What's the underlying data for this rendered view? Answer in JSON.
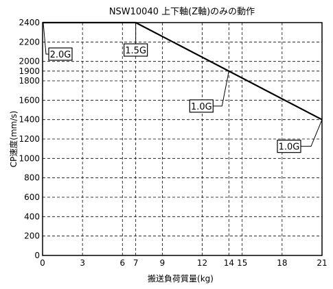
{
  "chart_data": {
    "type": "line",
    "title": "NSW10040 上下軸(Z軸)のみの動作",
    "xlabel": "搬送負荷質量(kg)",
    "ylabel": "CP速度(mm/s)",
    "xlim": [
      0,
      21
    ],
    "ylim": [
      0,
      2400
    ],
    "x_ticks": [
      0,
      3,
      6,
      7,
      9,
      12,
      14,
      15,
      18,
      21
    ],
    "y_ticks": [
      0,
      200,
      400,
      600,
      800,
      1000,
      1200,
      1400,
      1600,
      1800,
      1900,
      2000,
      2200,
      2400
    ],
    "grid": true,
    "series": [
      {
        "x": [
          0,
          7,
          21
        ],
        "y": [
          2400,
          2400,
          1400
        ]
      }
    ],
    "annotations": [
      {
        "text": "2.0G",
        "x": 0,
        "y": 2400
      },
      {
        "text": "1.5G",
        "x": 7,
        "y": 2400
      },
      {
        "text": "1.0G",
        "x": 14,
        "y": 1900
      },
      {
        "text": "1.0G",
        "x": 21,
        "y": 1400
      }
    ]
  }
}
